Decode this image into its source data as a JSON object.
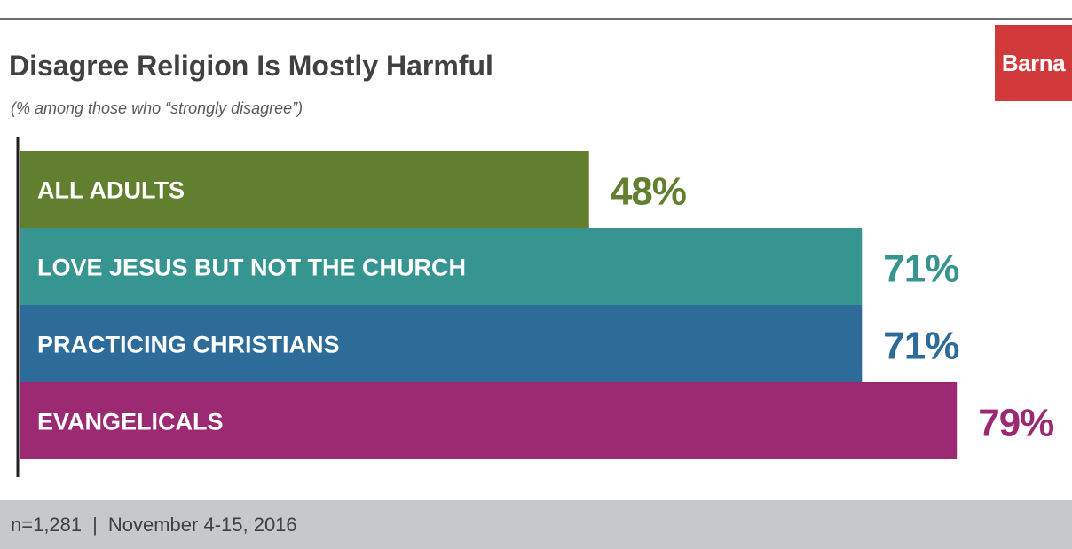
{
  "header": {
    "title": "Disagree Religion Is Mostly Harmful",
    "subtitle": "(% among those who “strongly disagree”)",
    "logo_text": "Barna"
  },
  "footer": {
    "sample": "n=1,281",
    "separator": "|",
    "date_range": "November 4-15, 2016"
  },
  "colors": {
    "logo": "#d2393a",
    "footer_bg": "#c7c8ca"
  },
  "chart_data": {
    "type": "bar",
    "orientation": "horizontal",
    "title": "Disagree Religion Is Mostly Harmful",
    "subtitle": "(% among those who “strongly disagree”)",
    "xlim": [
      0,
      100
    ],
    "grid": false,
    "categories": [
      "ALL ADULTS",
      "LOVE JESUS BUT NOT THE CHURCH",
      "PRACTICING CHRISTIANS",
      "EVANGELICALS"
    ],
    "values": [
      48,
      71,
      71,
      79
    ],
    "value_labels": [
      "48%",
      "71%",
      "71%",
      "79%"
    ],
    "colors": [
      "#627f30",
      "#369590",
      "#2d6b98",
      "#9c2a72"
    ]
  }
}
